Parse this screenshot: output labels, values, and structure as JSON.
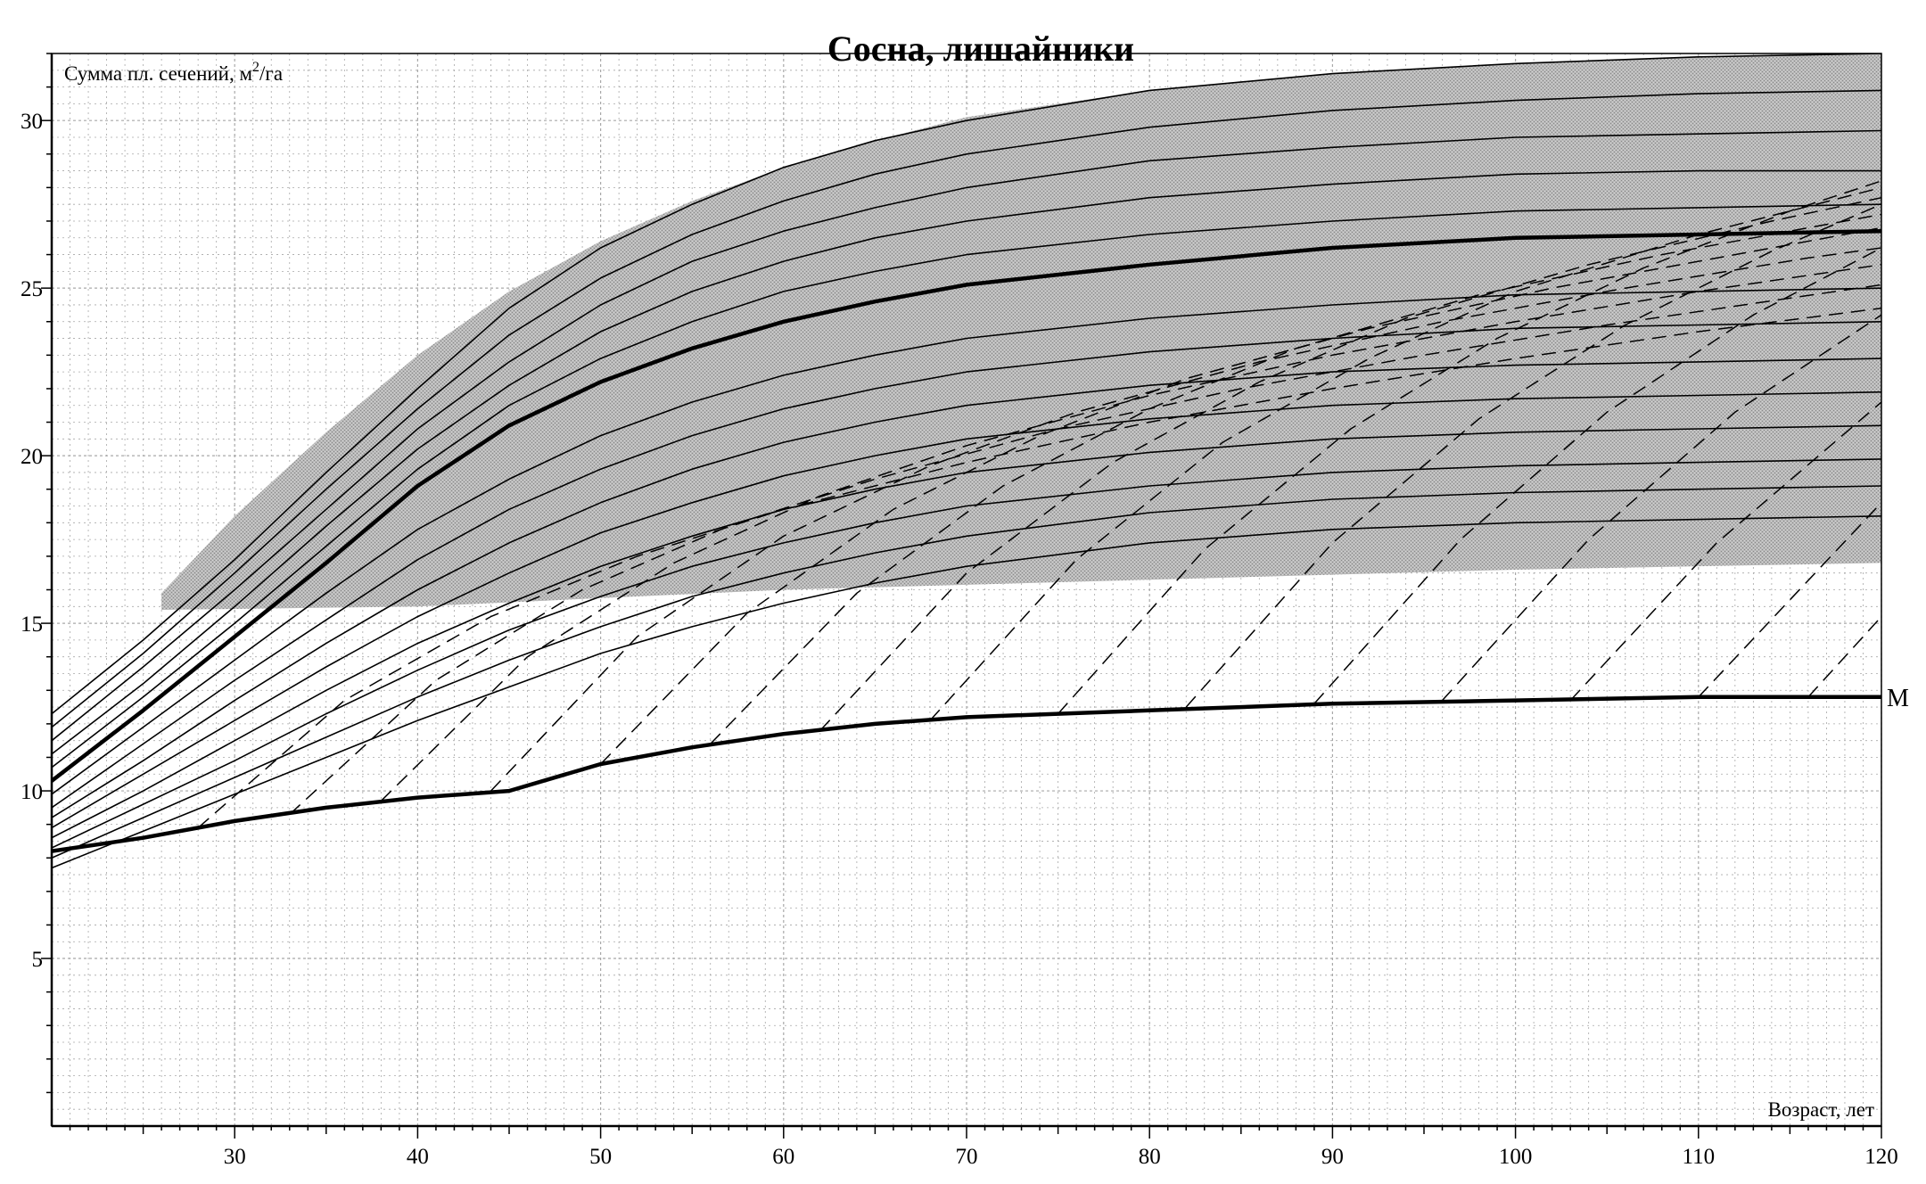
{
  "chart_data": {
    "type": "line",
    "title": "Сосна, лишайники",
    "ylabel_main": "Сумма пл. сечений, м",
    "ylabel_sup": "2",
    "ylabel_tail": "/га",
    "xlabel": "Возраст, лет",
    "xlim": [
      20,
      120
    ],
    "ylim": [
      0,
      32
    ],
    "x_ticks": [
      30,
      40,
      50,
      60,
      70,
      80,
      90,
      100,
      110,
      120
    ],
    "y_ticks": [
      5,
      10,
      15,
      20,
      25,
      30
    ],
    "grid": true,
    "shaded_region": {
      "name": "",
      "top": [
        [
          26,
          15.9
        ],
        [
          30,
          18.2
        ],
        [
          35,
          20.7
        ],
        [
          40,
          23.0
        ],
        [
          45,
          24.9
        ],
        [
          50,
          26.4
        ],
        [
          55,
          27.6
        ],
        [
          60,
          28.6
        ],
        [
          65,
          29.4
        ],
        [
          70,
          30.1
        ],
        [
          80,
          30.9
        ],
        [
          90,
          31.4
        ],
        [
          100,
          31.7
        ],
        [
          110,
          31.9
        ],
        [
          120,
          32.0
        ]
      ],
      "bottom": [
        [
          26,
          15.4
        ],
        [
          40,
          15.5
        ],
        [
          60,
          16.0
        ],
        [
          80,
          16.3
        ],
        [
          100,
          16.6
        ],
        [
          120,
          16.8
        ]
      ]
    },
    "series": [
      {
        "style": "solid-thick",
        "x": [
          20,
          25,
          30,
          35,
          40,
          45,
          50,
          55,
          60,
          65,
          70,
          80,
          90,
          100,
          110,
          120
        ],
        "y": [
          10.3,
          12.4,
          14.6,
          16.8,
          19.1,
          20.9,
          22.2,
          23.2,
          24.0,
          24.6,
          25.1,
          25.7,
          26.2,
          26.5,
          26.6,
          26.7
        ]
      },
      {
        "style": "solid-thick",
        "name": "М",
        "x": [
          20,
          25,
          30,
          35,
          40,
          45,
          50,
          55,
          60,
          65,
          70,
          80,
          90,
          100,
          110,
          120
        ],
        "y": [
          8.2,
          8.6,
          9.1,
          9.5,
          9.8,
          10.0,
          10.8,
          11.3,
          11.7,
          12.0,
          12.2,
          12.4,
          12.6,
          12.7,
          12.8,
          12.8
        ]
      },
      {
        "style": "solid",
        "x": [
          20,
          25,
          30,
          35,
          40,
          45,
          50,
          55,
          60,
          65,
          70,
          80,
          90,
          100,
          110,
          120
        ],
        "y": [
          12.3,
          14.5,
          16.9,
          19.5,
          22.0,
          24.4,
          26.2,
          27.5,
          28.6,
          29.4,
          30.0,
          30.9,
          31.4,
          31.7,
          31.9,
          32.0
        ]
      },
      {
        "style": "solid",
        "x": [
          20,
          25,
          30,
          35,
          40,
          45,
          50,
          55,
          60,
          65,
          70,
          80,
          90,
          100,
          110,
          120
        ],
        "y": [
          11.9,
          14.1,
          16.5,
          19.0,
          21.4,
          23.6,
          25.3,
          26.6,
          27.6,
          28.4,
          29.0,
          29.8,
          30.3,
          30.6,
          30.8,
          30.9
        ]
      },
      {
        "style": "solid",
        "x": [
          20,
          25,
          30,
          35,
          40,
          45,
          50,
          55,
          60,
          65,
          70,
          80,
          90,
          100,
          110,
          120
        ],
        "y": [
          11.5,
          13.7,
          16.0,
          18.4,
          20.8,
          22.8,
          24.5,
          25.8,
          26.7,
          27.4,
          28.0,
          28.8,
          29.2,
          29.5,
          29.6,
          29.7
        ]
      },
      {
        "style": "solid",
        "x": [
          20,
          25,
          30,
          35,
          40,
          45,
          50,
          55,
          60,
          65,
          70,
          80,
          90,
          100,
          110,
          120
        ],
        "y": [
          11.1,
          13.2,
          15.5,
          17.9,
          20.2,
          22.1,
          23.7,
          24.9,
          25.8,
          26.5,
          27.0,
          27.7,
          28.1,
          28.4,
          28.5,
          28.5
        ]
      },
      {
        "style": "solid",
        "x": [
          20,
          25,
          30,
          35,
          40,
          45,
          50,
          55,
          60,
          65,
          70,
          80,
          90,
          100,
          110,
          120
        ],
        "y": [
          10.7,
          12.8,
          15.0,
          17.3,
          19.6,
          21.5,
          22.9,
          24.0,
          24.9,
          25.5,
          26.0,
          26.6,
          27.0,
          27.3,
          27.4,
          27.5
        ]
      },
      {
        "style": "solid",
        "x": [
          20,
          25,
          30,
          35,
          40,
          45,
          50,
          55,
          60,
          65,
          70,
          80,
          90,
          100,
          110,
          120
        ],
        "y": [
          9.9,
          11.9,
          13.9,
          15.9,
          17.8,
          19.3,
          20.6,
          21.6,
          22.4,
          23.0,
          23.5,
          24.1,
          24.5,
          24.8,
          24.9,
          25.0
        ]
      },
      {
        "style": "solid",
        "x": [
          20,
          25,
          30,
          35,
          40,
          45,
          50,
          55,
          60,
          65,
          70,
          80,
          90,
          100,
          110,
          120
        ],
        "y": [
          9.5,
          11.4,
          13.3,
          15.1,
          16.9,
          18.4,
          19.6,
          20.6,
          21.4,
          22.0,
          22.5,
          23.1,
          23.5,
          23.8,
          23.9,
          24.0
        ]
      },
      {
        "style": "solid",
        "x": [
          20,
          25,
          30,
          35,
          40,
          45,
          50,
          55,
          60,
          65,
          70,
          80,
          90,
          100,
          110,
          120
        ],
        "y": [
          9.2,
          10.9,
          12.7,
          14.4,
          16.0,
          17.4,
          18.6,
          19.6,
          20.4,
          21.0,
          21.5,
          22.1,
          22.5,
          22.7,
          22.8,
          22.9
        ]
      },
      {
        "style": "solid",
        "x": [
          20,
          25,
          30,
          35,
          40,
          45,
          50,
          55,
          60,
          65,
          70,
          80,
          90,
          100,
          110,
          120
        ],
        "y": [
          8.9,
          10.5,
          12.1,
          13.7,
          15.2,
          16.5,
          17.7,
          18.6,
          19.4,
          20.0,
          20.5,
          21.1,
          21.5,
          21.7,
          21.8,
          21.9
        ]
      },
      {
        "style": "solid",
        "x": [
          20,
          25,
          30,
          35,
          40,
          45,
          50,
          55,
          60,
          65,
          70,
          80,
          90,
          100,
          110,
          120
        ],
        "y": [
          8.6,
          10.0,
          11.5,
          13.0,
          14.4,
          15.6,
          16.7,
          17.6,
          18.4,
          19.0,
          19.5,
          20.1,
          20.5,
          20.7,
          20.8,
          20.9
        ]
      },
      {
        "style": "solid",
        "x": [
          20,
          25,
          30,
          35,
          40,
          45,
          50,
          55,
          60,
          65,
          70,
          80,
          90,
          100,
          110,
          120
        ],
        "y": [
          8.3,
          9.6,
          10.9,
          12.3,
          13.6,
          14.8,
          15.8,
          16.7,
          17.4,
          18.0,
          18.5,
          19.1,
          19.5,
          19.7,
          19.8,
          19.9
        ]
      },
      {
        "style": "solid",
        "x": [
          20,
          25,
          30,
          35,
          40,
          45,
          50,
          55,
          60,
          65,
          70,
          80,
          90,
          100,
          110,
          120
        ],
        "y": [
          8.0,
          9.2,
          10.4,
          11.6,
          12.8,
          13.9,
          14.9,
          15.8,
          16.5,
          17.1,
          17.6,
          18.3,
          18.7,
          18.9,
          19.0,
          19.1
        ]
      },
      {
        "style": "solid",
        "x": [
          20,
          25,
          30,
          35,
          40,
          45,
          50,
          55,
          60,
          65,
          70,
          80,
          90,
          100,
          110,
          120
        ],
        "y": [
          7.7,
          8.8,
          9.9,
          11.0,
          12.1,
          13.1,
          14.1,
          14.9,
          15.6,
          16.2,
          16.7,
          17.4,
          17.8,
          18.0,
          18.1,
          18.2
        ]
      },
      {
        "style": "dashed",
        "x": [
          28,
          36,
          44,
          52,
          60,
          70,
          80,
          90,
          100,
          110,
          120
        ],
        "y": [
          8.9,
          12.7,
          15.2,
          17.0,
          18.4,
          19.8,
          21.0,
          22.0,
          22.9,
          23.7,
          24.4
        ]
      },
      {
        "style": "dashed",
        "x": [
          33,
          41,
          49,
          57,
          65,
          75,
          85,
          95,
          105,
          115,
          120
        ],
        "y": [
          9.3,
          13.3,
          16.0,
          17.9,
          19.3,
          20.8,
          22.0,
          23.0,
          23.9,
          24.7,
          25.1
        ]
      },
      {
        "style": "dashed",
        "x": [
          38,
          46,
          54,
          62,
          70,
          80,
          90,
          100,
          110,
          120
        ],
        "y": [
          9.7,
          14.0,
          16.8,
          18.8,
          20.3,
          21.8,
          23.0,
          24.0,
          24.9,
          25.7
        ]
      },
      {
        "style": "dashed",
        "x": [
          44,
          52,
          60,
          68,
          76,
          86,
          96,
          106,
          116,
          120
        ],
        "y": [
          10.0,
          14.6,
          17.6,
          19.7,
          21.3,
          22.8,
          24.0,
          25.0,
          25.9,
          26.2
        ]
      },
      {
        "style": "dashed",
        "x": [
          50,
          58,
          66,
          74,
          82,
          92,
          102,
          112,
          120
        ],
        "y": [
          10.8,
          15.3,
          18.4,
          20.6,
          22.3,
          23.8,
          25.0,
          26.0,
          26.8
        ]
      },
      {
        "style": "dashed",
        "x": [
          56,
          64,
          72,
          80,
          88,
          98,
          108,
          118,
          120
        ],
        "y": [
          11.4,
          15.9,
          19.1,
          21.4,
          23.2,
          24.8,
          26.0,
          27.0,
          27.2
        ]
      },
      {
        "style": "dashed",
        "x": [
          62,
          70,
          78,
          86,
          94,
          104,
          114,
          120
        ],
        "y": [
          11.8,
          16.5,
          19.8,
          22.2,
          24.1,
          25.7,
          27.0,
          27.7
        ]
      },
      {
        "style": "dashed",
        "x": [
          68,
          76,
          84,
          92,
          100,
          110,
          120
        ],
        "y": [
          12.1,
          16.9,
          20.4,
          22.9,
          24.9,
          26.6,
          28.0
        ]
      },
      {
        "style": "dashed",
        "x": [
          75,
          83,
          91,
          99,
          107,
          115,
          120
        ],
        "y": [
          12.3,
          17.2,
          20.8,
          23.5,
          25.6,
          27.3,
          28.2
        ]
      },
      {
        "style": "dashed",
        "x": [
          82,
          90,
          98,
          106,
          114,
          120
        ],
        "y": [
          12.5,
          17.4,
          21.1,
          23.9,
          26.1,
          27.5
        ]
      },
      {
        "style": "dashed",
        "x": [
          89,
          97,
          105,
          113,
          120
        ],
        "y": [
          12.6,
          17.5,
          21.3,
          24.2,
          26.2
        ]
      },
      {
        "style": "dashed",
        "x": [
          96,
          104,
          112,
          120
        ],
        "y": [
          12.7,
          17.5,
          21.3,
          24.2
        ]
      },
      {
        "style": "dashed",
        "x": [
          103,
          111,
          120
        ],
        "y": [
          12.7,
          17.4,
          21.6
        ]
      },
      {
        "style": "dashed",
        "x": [
          110,
          120
        ],
        "y": [
          12.8,
          18.6
        ]
      },
      {
        "style": "dashed",
        "x": [
          116,
          120
        ],
        "y": [
          12.8,
          15.2
        ]
      }
    ]
  }
}
